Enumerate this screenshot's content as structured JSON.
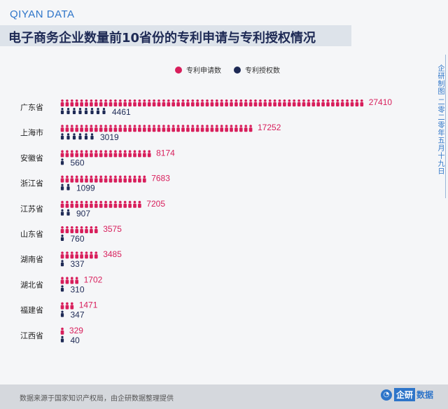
{
  "brand": "QIYAN DATA",
  "side_note": "企研制图 二零二零年五月十九日",
  "footer": {
    "note": "数据来源于国家知识产权局，由企研数据整理提供",
    "logo_box": "企研",
    "logo_text": "数据"
  },
  "colors": {
    "applications": "#d81e5b",
    "grants": "#1e2a55"
  },
  "chart_data": {
    "type": "bar",
    "title": "电子商务企业数量前10省份的专利申请与专利授权情况",
    "categories": [
      "广东省",
      "上海市",
      "安徽省",
      "浙江省",
      "江苏省",
      "山东省",
      "湖南省",
      "湖北省",
      "福建省",
      "江西省"
    ],
    "series": [
      {
        "name": "专利申请数",
        "values": [
          27410,
          17252,
          8174,
          7683,
          7205,
          3575,
          3485,
          1702,
          1471,
          329
        ]
      },
      {
        "name": "专利授权数",
        "values": [
          4461,
          3019,
          560,
          1099,
          907,
          760,
          337,
          310,
          347,
          40
        ]
      }
    ],
    "legend_position": "top-center",
    "grid": false
  }
}
